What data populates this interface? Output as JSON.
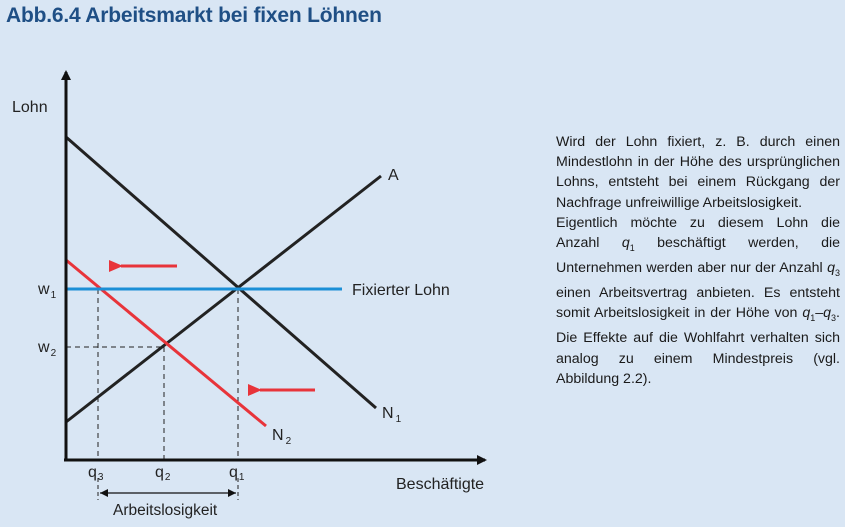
{
  "figure": {
    "title": "Abb.6.4  Arbeitsmarkt bei fixen Löhnen"
  },
  "diagram": {
    "y_axis_label": "Lohn",
    "x_axis_label": "Beschäftigte",
    "labels": {
      "supply": "A",
      "demand_1": "N",
      "demand_1_sub": "1",
      "demand_2": "N",
      "demand_2_sub": "2",
      "fixed_wage": "Fixierter Lohn",
      "w1": "w",
      "w1_sub": "1",
      "w2": "w",
      "w2_sub": "2",
      "q1": "q",
      "q1_sub": "1",
      "q2": "q",
      "q2_sub": "2",
      "q3": "q",
      "q3_sub": "3",
      "unemployment": "Arbeitslosigkeit"
    },
    "colors": {
      "axes": "#111111",
      "supply_demand": "#222222",
      "demand_shift": "#e8343a",
      "fixed_wage_line": "#1b8fd6",
      "arrows": "#e8343a",
      "title": "#1f4f85",
      "background": "#d9e6f4"
    }
  },
  "text": {
    "p1": "Wird der Lohn fixiert, z. B. durch einen Mindestlohn in der Höhe des ursprünglichen Lohns, entsteht bei einem Rückgang der Nachfrage unfreiwillige Arbeitslosigkeit.",
    "p2_a": "Eigentlich möchte zu diesem Lohn die Anzahl ",
    "p2_q1": "q",
    "p2_q1_sub": "1",
    "p2_b": " beschäftigt werden, die Unternehmen werden aber nur der Anzahl ",
    "p2_q3": "q",
    "p2_q3_sub": "3",
    "p2_c": " einen Arbeitsvertrag anbieten. Es entsteht somit Arbeitslosigkeit in der Höhe von ",
    "p2_r1": "q",
    "p2_r1_sub": "1",
    "p2_dash": "–",
    "p2_r3": "q",
    "p2_r3_sub": "3",
    "p2_d": ". Die Effekte auf die Wohlfahrt verhalten sich analog zu einem Mindestpreis (vgl. Abbildung 2.2)."
  }
}
